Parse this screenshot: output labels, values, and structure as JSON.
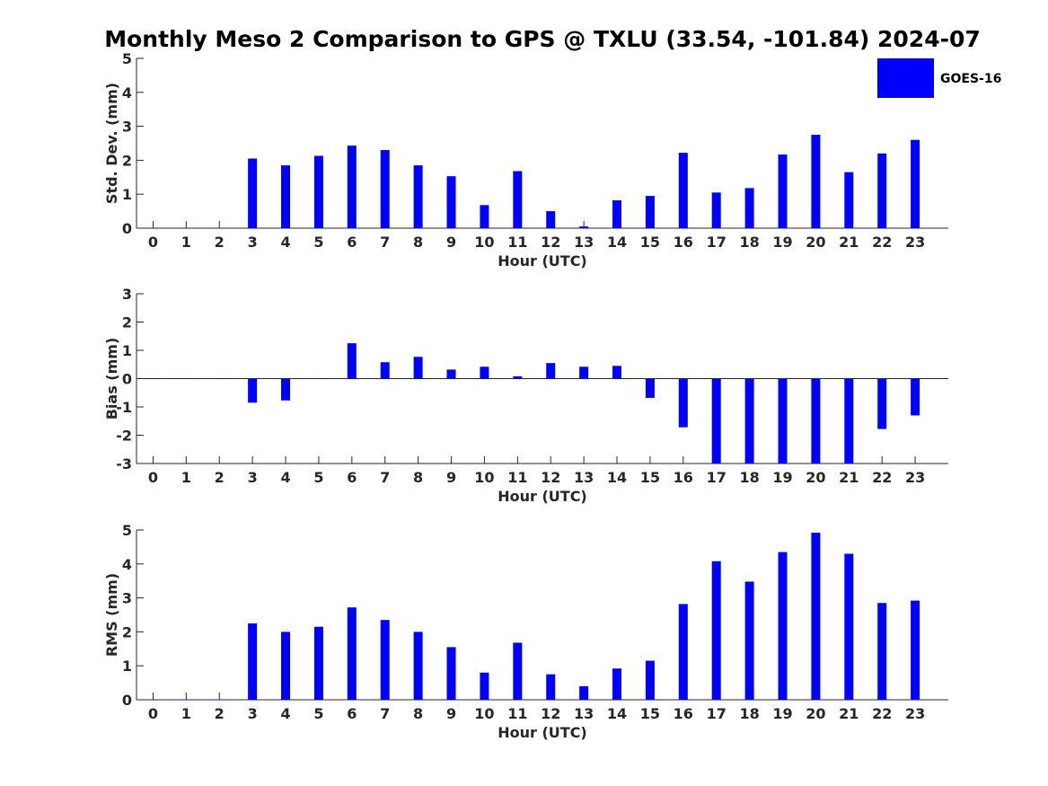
{
  "title": "Monthly Meso 2 Comparison to GPS @ TXLU (33.54, -101.84) 2024-07",
  "legend": {
    "label": "GOES-16",
    "color": "#0000ff",
    "placement": "top-right"
  },
  "chart_data": [
    {
      "type": "bar",
      "xlabel": "Hour (UTC)",
      "ylabel": "Std. Dev. (mm)",
      "ylim": [
        0,
        5
      ],
      "yticks": [
        "0",
        "1",
        "2",
        "3",
        "4",
        "5"
      ],
      "categories": [
        "0",
        "1",
        "2",
        "3",
        "4",
        "5",
        "6",
        "7",
        "8",
        "9",
        "10",
        "11",
        "12",
        "13",
        "14",
        "15",
        "16",
        "17",
        "18",
        "19",
        "20",
        "21",
        "22",
        "23"
      ],
      "series": [
        {
          "name": "GOES-16",
          "values": [
            0,
            0,
            0,
            2.05,
            1.85,
            2.13,
            2.43,
            2.3,
            1.85,
            1.53,
            0.68,
            1.68,
            0.5,
            0.05,
            0.82,
            0.95,
            2.22,
            1.05,
            1.18,
            2.17,
            2.75,
            1.65,
            2.2,
            2.6
          ]
        }
      ]
    },
    {
      "type": "bar",
      "xlabel": "Hour (UTC)",
      "ylabel": "Bias (mm)",
      "ylim": [
        -3,
        3
      ],
      "yticks": [
        "-3",
        "-2",
        "-1",
        "0",
        "1",
        "2",
        "3"
      ],
      "categories": [
        "0",
        "1",
        "2",
        "3",
        "4",
        "5",
        "6",
        "7",
        "8",
        "9",
        "10",
        "11",
        "12",
        "13",
        "14",
        "15",
        "16",
        "17",
        "18",
        "19",
        "20",
        "21",
        "22",
        "23"
      ],
      "series": [
        {
          "name": "GOES-16",
          "values": [
            0,
            0,
            0,
            -0.85,
            -0.77,
            0,
            1.25,
            0.58,
            0.77,
            0.32,
            0.42,
            0.08,
            0.55,
            0.42,
            0.45,
            -0.68,
            -1.72,
            -3.3,
            -3.3,
            -3.3,
            -3.3,
            -3.3,
            -1.78,
            -1.3
          ]
        }
      ]
    },
    {
      "type": "bar",
      "xlabel": "Hour (UTC)",
      "ylabel": "RMS (mm)",
      "ylim": [
        0,
        5
      ],
      "yticks": [
        "0",
        "1",
        "2",
        "3",
        "4",
        "5"
      ],
      "categories": [
        "0",
        "1",
        "2",
        "3",
        "4",
        "5",
        "6",
        "7",
        "8",
        "9",
        "10",
        "11",
        "12",
        "13",
        "14",
        "15",
        "16",
        "17",
        "18",
        "19",
        "20",
        "21",
        "22",
        "23"
      ],
      "series": [
        {
          "name": "GOES-16",
          "values": [
            0,
            0,
            0,
            2.25,
            2.0,
            2.15,
            2.72,
            2.35,
            2.0,
            1.55,
            0.8,
            1.68,
            0.75,
            0.4,
            0.92,
            1.15,
            2.82,
            4.08,
            3.48,
            4.35,
            4.92,
            4.3,
            2.85,
            2.92
          ]
        }
      ]
    }
  ]
}
